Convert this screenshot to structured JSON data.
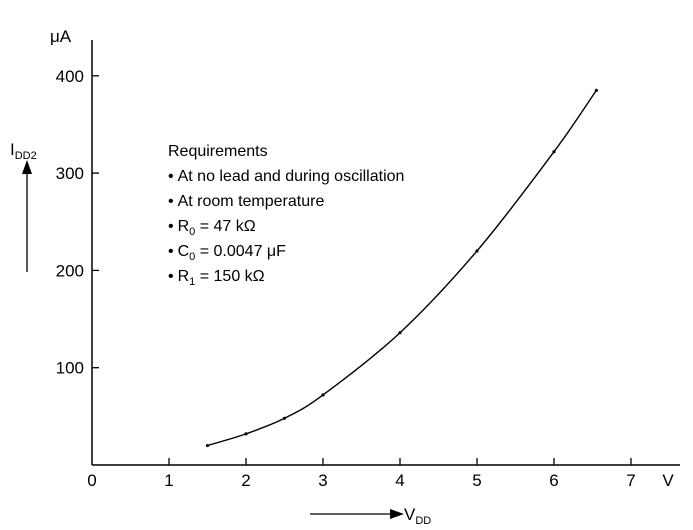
{
  "chart_data": {
    "type": "line",
    "title": "",
    "x_label": {
      "main": "V",
      "sub": "DD"
    },
    "y_label": {
      "main": "I",
      "sub": "DD2"
    },
    "x_unit": "V",
    "y_unit": "μA",
    "x_range": [
      0,
      7.5
    ],
    "y_range": [
      0,
      400
    ],
    "x_ticks": [
      0,
      1,
      2,
      3,
      4,
      5,
      6,
      7
    ],
    "y_ticks": [
      100,
      200,
      300,
      400
    ],
    "grid": false,
    "series": [
      {
        "points": [
          {
            "x": 1.5,
            "y": 20
          },
          {
            "x": 2.0,
            "y": 32
          },
          {
            "x": 2.5,
            "y": 48
          },
          {
            "x": 3.0,
            "y": 72
          },
          {
            "x": 4.0,
            "y": 136
          },
          {
            "x": 5.0,
            "y": 220
          },
          {
            "x": 6.0,
            "y": 322
          },
          {
            "x": 6.55,
            "y": 385
          }
        ]
      }
    ],
    "annotations": {
      "heading": "Requirements",
      "bullets": [
        {
          "text": "At no lead and during oscillation"
        },
        {
          "text": "At room temperature"
        },
        {
          "main": "R",
          "sub": "0",
          "rest": " = 47 kΩ"
        },
        {
          "main": "C",
          "sub": "0",
          "rest": " = 0.0047 μF"
        },
        {
          "main": "R",
          "sub": "1",
          "rest": " = 150 kΩ"
        }
      ],
      "bullet_char": "•"
    }
  }
}
